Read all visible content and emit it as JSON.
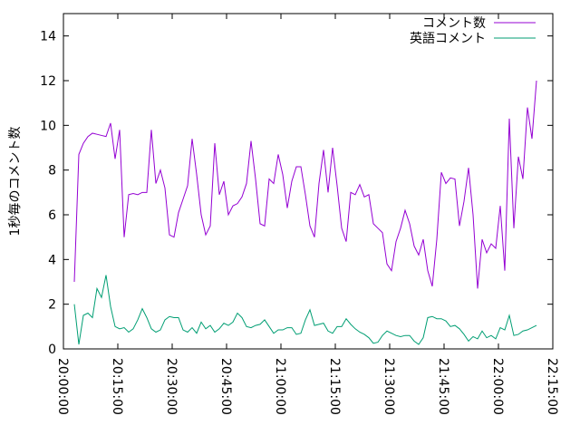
{
  "chart_data": {
    "type": "line",
    "ylabel": "1秒毎のコメント数",
    "xlim": [
      "20:00:00",
      "22:15:00"
    ],
    "xticks": [
      "20:00:00",
      "20:15:00",
      "20:30:00",
      "20:45:00",
      "21:00:00",
      "21:15:00",
      "21:30:00",
      "21:45:00",
      "22:00:00",
      "22:15:00"
    ],
    "ylim": [
      0,
      15
    ],
    "yticks": [
      0,
      2,
      4,
      6,
      8,
      10,
      12,
      14
    ],
    "legend": "top-right",
    "x": [
      "20:03:00",
      "20:04:15",
      "20:05:30",
      "20:06:45",
      "20:08:00",
      "20:09:15",
      "20:10:30",
      "20:11:45",
      "20:13:00",
      "20:14:15",
      "20:15:30",
      "20:16:45",
      "20:18:00",
      "20:19:15",
      "20:20:30",
      "20:21:45",
      "20:23:00",
      "20:24:15",
      "20:25:30",
      "20:26:45",
      "20:28:00",
      "20:29:15",
      "20:30:30",
      "20:31:45",
      "20:33:00",
      "20:34:15",
      "20:35:30",
      "20:36:45",
      "20:38:00",
      "20:39:15",
      "20:40:30",
      "20:41:45",
      "20:43:00",
      "20:44:15",
      "20:45:30",
      "20:46:45",
      "20:48:00",
      "20:49:15",
      "20:50:30",
      "20:51:45",
      "20:53:00",
      "20:54:15",
      "20:55:30",
      "20:56:45",
      "20:58:00",
      "20:59:15",
      "21:00:30",
      "21:01:45",
      "21:03:00",
      "21:04:15",
      "21:05:30",
      "21:06:45",
      "21:08:00",
      "21:09:15",
      "21:10:30",
      "21:11:45",
      "21:13:00",
      "21:14:15",
      "21:15:30",
      "21:16:45",
      "21:18:00",
      "21:19:15",
      "21:20:30",
      "21:21:45",
      "21:23:00",
      "21:24:15",
      "21:25:30",
      "21:26:45",
      "21:28:00",
      "21:29:15",
      "21:30:30",
      "21:31:45",
      "21:33:00",
      "21:34:15",
      "21:35:30",
      "21:36:45",
      "21:38:00",
      "21:39:15",
      "21:40:30",
      "21:41:45",
      "21:43:00",
      "21:44:15",
      "21:45:30",
      "21:46:45",
      "21:48:00",
      "21:49:15",
      "21:50:30",
      "21:51:45",
      "21:53:00",
      "21:54:15",
      "21:55:30",
      "21:56:45",
      "21:58:00",
      "21:59:15",
      "22:00:30",
      "22:01:45",
      "22:03:00",
      "22:04:15",
      "22:05:30",
      "22:06:45",
      "22:08:00",
      "22:09:15",
      "22:10:30"
    ],
    "series": [
      {
        "name": "コメント数",
        "color": "#9400d3",
        "values": [
          3.0,
          8.7,
          9.2,
          9.5,
          9.65,
          9.6,
          9.55,
          9.5,
          10.1,
          8.5,
          9.8,
          5.0,
          6.9,
          6.95,
          6.9,
          7.0,
          7.0,
          9.8,
          7.4,
          8.0,
          7.2,
          5.1,
          5.0,
          6.1,
          6.7,
          7.3,
          9.4,
          7.8,
          6.0,
          5.1,
          5.5,
          9.2,
          6.9,
          7.5,
          6.0,
          6.4,
          6.5,
          6.8,
          7.4,
          9.3,
          7.6,
          5.6,
          5.5,
          7.6,
          7.4,
          8.7,
          7.8,
          6.3,
          7.5,
          8.15,
          8.15,
          6.9,
          5.5,
          5.0,
          7.4,
          8.9,
          7.0,
          9.0,
          7.3,
          5.4,
          4.8,
          7.0,
          6.9,
          7.35,
          6.8,
          6.9,
          5.6,
          5.4,
          5.2,
          3.8,
          3.5,
          4.8,
          5.4,
          6.2,
          5.6,
          4.6,
          4.2,
          4.9,
          3.5,
          2.8,
          4.9,
          7.9,
          7.4,
          7.65,
          7.6,
          5.5,
          6.6,
          8.1,
          6.0,
          2.7,
          4.9,
          4.3,
          4.7,
          4.5,
          6.4,
          3.5,
          10.3,
          5.4,
          8.6,
          7.6,
          10.8,
          9.4,
          12.0
        ]
      },
      {
        "name": "英語コメント",
        "color": "#009e73",
        "values": [
          2.0,
          0.2,
          1.5,
          1.6,
          1.4,
          2.7,
          2.3,
          3.3,
          1.9,
          1.0,
          0.9,
          0.95,
          0.75,
          0.9,
          1.3,
          1.8,
          1.4,
          0.9,
          0.75,
          0.85,
          1.3,
          1.45,
          1.4,
          1.4,
          0.85,
          0.75,
          0.95,
          0.7,
          1.2,
          0.9,
          1.05,
          0.75,
          0.9,
          1.15,
          1.05,
          1.2,
          1.6,
          1.4,
          1.0,
          0.95,
          1.05,
          1.1,
          1.3,
          1.0,
          0.7,
          0.85,
          0.85,
          0.95,
          0.95,
          0.65,
          0.7,
          1.3,
          1.75,
          1.05,
          1.1,
          1.15,
          0.8,
          0.7,
          1.0,
          1.0,
          1.35,
          1.1,
          0.9,
          0.75,
          0.65,
          0.5,
          0.25,
          0.3,
          0.6,
          0.8,
          0.7,
          0.6,
          0.55,
          0.6,
          0.6,
          0.35,
          0.2,
          0.5,
          1.4,
          1.45,
          1.35,
          1.35,
          1.25,
          1.0,
          1.05,
          0.9,
          0.65,
          0.35,
          0.55,
          0.45,
          0.8,
          0.5,
          0.6,
          0.45,
          0.95,
          0.85,
          1.5,
          0.6,
          0.65,
          0.8,
          0.85,
          0.95,
          1.05
        ]
      }
    ]
  }
}
